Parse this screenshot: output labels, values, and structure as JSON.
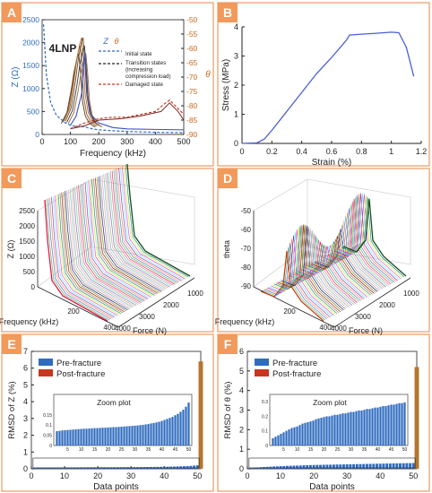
{
  "colors": {
    "panel_border": "#F0A87A",
    "label_bg": "#F19A5C",
    "label_text": "#ffffff",
    "axis": "#222222",
    "blue": "#2F6CC0",
    "red": "#C8361E",
    "orange_axis": "#C86B1E",
    "stress_line": "#4A5FD0"
  },
  "chart_data": [
    {
      "panel": "A",
      "type": "line",
      "annotation": "4LNP",
      "xlabel": "Frequency (kHz)",
      "ylabel": "Z (Ω)",
      "y2label": "θ",
      "xlim": [
        0,
        500
      ],
      "ylim": [
        0,
        2500
      ],
      "y2lim": [
        -90,
        -50
      ],
      "xticks": [
        0,
        100,
        200,
        300,
        400,
        500
      ],
      "yticks": [
        0,
        500,
        1000,
        1500,
        2000,
        2500
      ],
      "y2ticks": [
        -50,
        -55,
        -60,
        -65,
        -70,
        -75,
        -80,
        -85,
        -90
      ],
      "legend_headers": [
        "Z",
        "θ"
      ],
      "legend": [
        "Initial state",
        "Transition states (increasing compression load)",
        "Damaged state"
      ],
      "series": [
        {
          "name": "Initial state",
          "axis": "Z",
          "x": [
            5,
            15,
            30,
            50,
            80,
            100,
            115,
            125,
            135,
            145,
            155,
            165,
            180,
            200,
            250,
            300,
            350,
            400,
            450,
            500
          ],
          "values": [
            2400,
            1300,
            700,
            420,
            260,
            200,
            180,
            175,
            170,
            168,
            160,
            140,
            120,
            100,
            80,
            65,
            55,
            48,
            42,
            38
          ]
        },
        {
          "name": "Transition states (increasing compression load)",
          "axis": "Z",
          "x": [
            80,
            100,
            115,
            125,
            135,
            142,
            148,
            155,
            165,
            180,
            200
          ],
          "values": [
            300,
            600,
            1200,
            1700,
            2050,
            2200,
            1700,
            900,
            500,
            300,
            200
          ]
        },
        {
          "name": "Damaged state",
          "axis": "theta",
          "x": [
            100,
            150,
            200,
            250,
            300,
            350,
            400,
            430,
            450,
            470,
            500
          ],
          "values": [
            -88,
            -86,
            -84.5,
            -84,
            -84,
            -83,
            -82,
            -79.5,
            -78,
            -80,
            -83
          ]
        }
      ]
    },
    {
      "panel": "B",
      "type": "line",
      "xlabel": "Strain (%)",
      "ylabel": "Stress (MPa)",
      "xlim": [
        0,
        1.2
      ],
      "ylim": [
        0,
        4
      ],
      "xticks": [
        0,
        0.2,
        0.4,
        0.6,
        0.8,
        1,
        1.2
      ],
      "yticks": [
        0,
        1,
        2,
        3,
        4
      ],
      "series": [
        {
          "x": [
            0,
            0.1,
            0.15,
            0.2,
            0.3,
            0.4,
            0.5,
            0.6,
            0.7,
            0.72,
            0.8,
            0.9,
            1.0,
            1.05,
            1.1,
            1.15
          ],
          "values": [
            0,
            0.02,
            0.15,
            0.45,
            1.1,
            1.75,
            2.4,
            2.95,
            3.55,
            3.72,
            3.75,
            3.78,
            3.82,
            3.8,
            3.3,
            2.3
          ]
        }
      ]
    },
    {
      "panel": "C",
      "type": "line",
      "xlabel": "Frequency (kHz)",
      "ylabel": "Z (Ω)",
      "zlabel": "Force (N)",
      "xticks": [
        200,
        400
      ],
      "yticks": [
        0,
        500,
        1000,
        1500,
        2000,
        2500
      ],
      "zticks": [
        1000,
        2000,
        3000,
        4000
      ],
      "series_count": 50
    },
    {
      "panel": "D",
      "type": "line",
      "xlabel": "Frequency (kHz)",
      "ylabel": "theta",
      "zlabel": "Force (N)",
      "xticks": [
        200,
        400
      ],
      "yticks": [
        -50,
        -60,
        -70,
        -80,
        -90
      ],
      "zticks": [
        1000,
        2000,
        3000,
        4000
      ],
      "series_count": 50
    },
    {
      "panel": "E",
      "type": "bar",
      "xlabel": "Data points",
      "ylabel": "RMSD of Z (%)",
      "xlim": [
        0,
        51
      ],
      "ylim": [
        0,
        7
      ],
      "xticks": [
        0,
        10,
        20,
        30,
        40,
        50
      ],
      "yticks": [
        0,
        1,
        2,
        3,
        4,
        5,
        6,
        7
      ],
      "legend": [
        "Pre-fracture",
        "Post-fracture"
      ],
      "pre_values": [
        0.07,
        0.072,
        0.074,
        0.075,
        0.076,
        0.077,
        0.078,
        0.079,
        0.08,
        0.081,
        0.082,
        0.082,
        0.083,
        0.084,
        0.085,
        0.085,
        0.086,
        0.087,
        0.087,
        0.088,
        0.089,
        0.09,
        0.09,
        0.091,
        0.092,
        0.093,
        0.094,
        0.095,
        0.096,
        0.097,
        0.098,
        0.1,
        0.101,
        0.103,
        0.105,
        0.108,
        0.11,
        0.113,
        0.116,
        0.12,
        0.125,
        0.13,
        0.135,
        0.14,
        0.148,
        0.155,
        0.165,
        0.175,
        0.19,
        0.21
      ],
      "post_value": 6.4,
      "inset": {
        "title": "Zoom plot",
        "ylim": [
          0,
          0.25
        ],
        "yticks": [
          0,
          0.05,
          0.1,
          0.15
        ],
        "xticks": [
          5,
          10,
          15,
          20,
          25,
          30,
          35,
          40,
          45,
          50
        ]
      }
    },
    {
      "panel": "F",
      "type": "bar",
      "xlabel": "Data points",
      "ylabel": "RMSD of θ (%)",
      "xlim": [
        0,
        51
      ],
      "ylim": [
        0,
        6
      ],
      "xticks": [
        0,
        10,
        20,
        30,
        40,
        50
      ],
      "yticks": [
        0,
        1,
        2,
        3,
        4,
        5,
        6
      ],
      "legend": [
        "Pre-fracture",
        "Post-fracture"
      ],
      "pre_values": [
        0.05,
        0.06,
        0.07,
        0.08,
        0.09,
        0.1,
        0.11,
        0.12,
        0.125,
        0.13,
        0.14,
        0.15,
        0.155,
        0.16,
        0.165,
        0.17,
        0.18,
        0.185,
        0.19,
        0.195,
        0.2,
        0.2,
        0.205,
        0.21,
        0.21,
        0.215,
        0.22,
        0.22,
        0.225,
        0.23,
        0.23,
        0.235,
        0.24,
        0.24,
        0.245,
        0.25,
        0.25,
        0.255,
        0.26,
        0.26,
        0.265,
        0.27,
        0.27,
        0.275,
        0.28,
        0.28,
        0.285,
        0.29,
        0.29,
        0.295
      ],
      "post_value": 5.2,
      "inset": {
        "title": "Zoom plot",
        "ylim": [
          0,
          0.35
        ],
        "yticks": [
          0,
          0.1,
          0.2,
          0.3
        ],
        "xticks": [
          5,
          10,
          15,
          20,
          25,
          30,
          35,
          40,
          45,
          50
        ]
      }
    }
  ]
}
